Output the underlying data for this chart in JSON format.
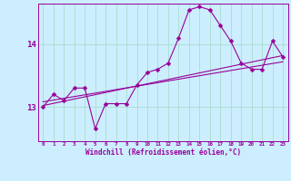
{
  "xlabel": "Windchill (Refroidissement éolien,°C)",
  "background_color": "#cceeff",
  "grid_color": "#aaddcc",
  "line_color": "#990099",
  "xlim": [
    -0.5,
    23.5
  ],
  "ylim": [
    12.45,
    14.65
  ],
  "yticks": [
    13,
    14
  ],
  "xticks": [
    0,
    1,
    2,
    3,
    4,
    5,
    6,
    7,
    8,
    9,
    10,
    11,
    12,
    13,
    14,
    15,
    16,
    17,
    18,
    19,
    20,
    21,
    22,
    23
  ],
  "series1": [
    13.0,
    13.2,
    13.1,
    13.3,
    13.3,
    12.65,
    13.05,
    13.05,
    13.05,
    13.35,
    13.55,
    13.6,
    13.7,
    14.1,
    14.55,
    14.6,
    14.55,
    14.3,
    14.05,
    13.7,
    13.6,
    13.6,
    14.05,
    13.8
  ],
  "series2_x": [
    0,
    23
  ],
  "series2_y": [
    13.02,
    13.82
  ],
  "series3_x": [
    0,
    23
  ],
  "series3_y": [
    13.08,
    13.72
  ],
  "markersize": 2.5,
  "linewidth": 0.8
}
